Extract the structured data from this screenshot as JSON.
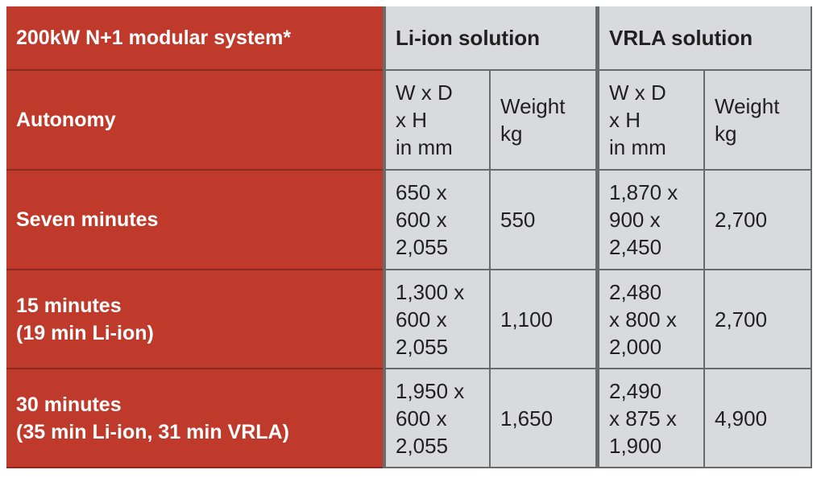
{
  "header": {
    "title": "200kW N+1 modular system*",
    "li_ion": "Li-ion solution",
    "vrla": "VRLA solution"
  },
  "subheader": {
    "label": [
      "Autonomy"
    ],
    "cells": [
      [
        "W x D",
        "x H",
        "in mm"
      ],
      [
        "Weight",
        "kg"
      ],
      [
        "W x D",
        "x H",
        "in mm"
      ],
      [
        "Weight",
        "kg"
      ]
    ]
  },
  "rows": [
    {
      "label": [
        "Seven minutes"
      ],
      "cells": [
        [
          "650 x",
          "600 x",
          "2,055"
        ],
        [
          "550"
        ],
        [
          "1,870 x",
          "900 x",
          "2,450"
        ],
        [
          "2,700"
        ]
      ]
    },
    {
      "label": [
        "15 minutes",
        "(19 min Li-ion)"
      ],
      "cells": [
        [
          "1,300 x",
          "600 x",
          "2,055"
        ],
        [
          "1,100"
        ],
        [
          "2,480",
          "x 800 x",
          "2,000"
        ],
        [
          "2,700"
        ]
      ]
    },
    {
      "label": [
        "30 minutes",
        "(35 min Li-ion, 31 min VRLA)"
      ],
      "cells": [
        [
          "1,950 x",
          "600 x",
          "2,055"
        ],
        [
          "1,650"
        ],
        [
          "2,490",
          "x 875 x",
          "1,900"
        ],
        [
          "4,900"
        ]
      ]
    }
  ]
}
